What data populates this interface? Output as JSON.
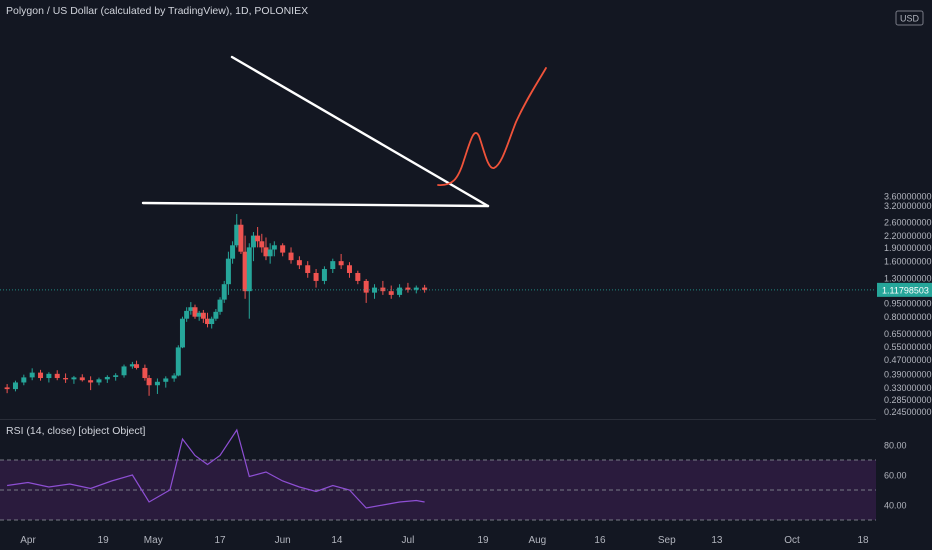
{
  "header": {
    "title": "Polygon / US Dollar (calculated by TradingView), 1D, POLONIEX",
    "currency": "USD"
  },
  "rsi": {
    "label": "RSI (14, close) [object Object]",
    "ticks": [
      "80.00",
      "60.00",
      "40.00"
    ],
    "upper_band": 70,
    "lower_band": 30,
    "mid_band": 50
  },
  "price_axis": {
    "ticks": [
      "3.60000000",
      "3.20000000",
      "2.60000000",
      "2.20000000",
      "1.90000000",
      "1.60000000",
      "1.30000000",
      "0.95000000",
      "0.80000000",
      "0.65000000",
      "0.55000000",
      "0.47000000",
      "0.39000000",
      "0.33000000",
      "0.28500000",
      "0.24500000"
    ],
    "last_price": "1.11798503"
  },
  "time_axis": {
    "ticks": [
      "Apr",
      "19",
      "May",
      "17",
      "Jun",
      "14",
      "Jul",
      "19",
      "Aug",
      "16",
      "Sep",
      "13",
      "Oct",
      "18"
    ]
  },
  "colors": {
    "background": "#131722",
    "up": "#26a69a",
    "down": "#ef5350",
    "drawing": "#ffffff",
    "projection": "#f0533a",
    "rsi_line": "#8e4fd4",
    "rsi_band": "#2a1b3d",
    "last_price_tag": "#26a69a"
  },
  "chart_data": [
    {
      "type": "candlestick",
      "title": "Polygon / US Dollar (calculated by TradingView), 1D, POLONIEX",
      "scale": "log",
      "x_range": [
        "Mar 26",
        "Oct 21"
      ],
      "y_range": [
        0.24,
        3.7
      ],
      "series": [
        {
          "date": "Mar 27",
          "open": 0.331,
          "high": 0.345,
          "low": 0.308,
          "close": 0.324
        },
        {
          "date": "Mar 29",
          "open": 0.324,
          "high": 0.36,
          "low": 0.315,
          "close": 0.352
        },
        {
          "date": "Mar 31",
          "open": 0.352,
          "high": 0.388,
          "low": 0.34,
          "close": 0.375
        },
        {
          "date": "Apr 2",
          "open": 0.375,
          "high": 0.42,
          "low": 0.362,
          "close": 0.398
        },
        {
          "date": "Apr 4",
          "open": 0.398,
          "high": 0.412,
          "low": 0.36,
          "close": 0.372
        },
        {
          "date": "Apr 6",
          "open": 0.372,
          "high": 0.4,
          "low": 0.352,
          "close": 0.392
        },
        {
          "date": "Apr 8",
          "open": 0.392,
          "high": 0.41,
          "low": 0.362,
          "close": 0.372
        },
        {
          "date": "Apr 10",
          "open": 0.372,
          "high": 0.394,
          "low": 0.35,
          "close": 0.366
        },
        {
          "date": "Apr 12",
          "open": 0.366,
          "high": 0.382,
          "low": 0.346,
          "close": 0.375
        },
        {
          "date": "Apr 14",
          "open": 0.375,
          "high": 0.39,
          "low": 0.356,
          "close": 0.362
        },
        {
          "date": "Apr 16",
          "open": 0.362,
          "high": 0.38,
          "low": 0.32,
          "close": 0.352
        },
        {
          "date": "Apr 18",
          "open": 0.352,
          "high": 0.374,
          "low": 0.34,
          "close": 0.366
        },
        {
          "date": "Apr 20",
          "open": 0.366,
          "high": 0.385,
          "low": 0.35,
          "close": 0.377
        },
        {
          "date": "Apr 22",
          "open": 0.377,
          "high": 0.395,
          "low": 0.36,
          "close": 0.385
        },
        {
          "date": "Apr 24",
          "open": 0.385,
          "high": 0.44,
          "low": 0.374,
          "close": 0.43
        },
        {
          "date": "Apr 26",
          "open": 0.43,
          "high": 0.455,
          "low": 0.418,
          "close": 0.442
        },
        {
          "date": "Apr 27",
          "open": 0.442,
          "high": 0.462,
          "low": 0.414,
          "close": 0.422
        },
        {
          "date": "Apr 29",
          "open": 0.422,
          "high": 0.44,
          "low": 0.36,
          "close": 0.372
        },
        {
          "date": "Apr 30",
          "open": 0.372,
          "high": 0.386,
          "low": 0.298,
          "close": 0.34
        },
        {
          "date": "May 2",
          "open": 0.34,
          "high": 0.37,
          "low": 0.305,
          "close": 0.355
        },
        {
          "date": "May 4",
          "open": 0.355,
          "high": 0.38,
          "low": 0.33,
          "close": 0.37
        },
        {
          "date": "May 6",
          "open": 0.37,
          "high": 0.395,
          "low": 0.355,
          "close": 0.384
        },
        {
          "date": "May 7",
          "open": 0.384,
          "high": 0.56,
          "low": 0.38,
          "close": 0.545
        },
        {
          "date": "May 8",
          "open": 0.545,
          "high": 0.8,
          "low": 0.54,
          "close": 0.78
        },
        {
          "date": "May 9",
          "open": 0.78,
          "high": 0.9,
          "low": 0.75,
          "close": 0.86
        },
        {
          "date": "May 10",
          "open": 0.86,
          "high": 0.96,
          "low": 0.82,
          "close": 0.9
        },
        {
          "date": "May 11",
          "open": 0.9,
          "high": 0.93,
          "low": 0.78,
          "close": 0.8
        },
        {
          "date": "May 12",
          "open": 0.8,
          "high": 0.86,
          "low": 0.76,
          "close": 0.84
        },
        {
          "date": "May 13",
          "open": 0.84,
          "high": 0.87,
          "low": 0.74,
          "close": 0.78
        },
        {
          "date": "May 14",
          "open": 0.78,
          "high": 0.84,
          "low": 0.7,
          "close": 0.73
        },
        {
          "date": "May 15",
          "open": 0.73,
          "high": 0.8,
          "low": 0.69,
          "close": 0.78
        },
        {
          "date": "May 16",
          "open": 0.78,
          "high": 0.88,
          "low": 0.76,
          "close": 0.85
        },
        {
          "date": "May 17",
          "open": 0.85,
          "high": 1.02,
          "low": 0.82,
          "close": 0.99
        },
        {
          "date": "May 18",
          "open": 0.99,
          "high": 1.25,
          "low": 0.95,
          "close": 1.2
        },
        {
          "date": "May 19",
          "open": 1.2,
          "high": 1.8,
          "low": 1.05,
          "close": 1.65
        },
        {
          "date": "May 20",
          "open": 1.65,
          "high": 2.05,
          "low": 1.55,
          "close": 1.95
        },
        {
          "date": "May 21",
          "open": 1.95,
          "high": 2.88,
          "low": 1.9,
          "close": 2.52
        },
        {
          "date": "May 22",
          "open": 2.52,
          "high": 2.7,
          "low": 1.75,
          "close": 1.8
        },
        {
          "date": "May 23",
          "open": 1.8,
          "high": 2.2,
          "low": 1.0,
          "close": 1.1
        },
        {
          "date": "May 24",
          "open": 1.1,
          "high": 2.0,
          "low": 0.78,
          "close": 1.9
        },
        {
          "date": "May 25",
          "open": 1.9,
          "high": 2.3,
          "low": 1.6,
          "close": 2.2
        },
        {
          "date": "May 26",
          "open": 2.2,
          "high": 2.45,
          "low": 1.9,
          "close": 2.05
        },
        {
          "date": "May 27",
          "open": 2.05,
          "high": 2.25,
          "low": 1.78,
          "close": 1.9
        },
        {
          "date": "May 28",
          "open": 1.9,
          "high": 2.15,
          "low": 1.62,
          "close": 1.7
        },
        {
          "date": "May 29",
          "open": 1.7,
          "high": 2.0,
          "low": 1.55,
          "close": 1.85
        },
        {
          "date": "May 30",
          "open": 1.85,
          "high": 2.05,
          "low": 1.7,
          "close": 1.95
        },
        {
          "date": "Jun 1",
          "open": 1.95,
          "high": 2.0,
          "low": 1.7,
          "close": 1.78
        },
        {
          "date": "Jun 3",
          "open": 1.78,
          "high": 1.9,
          "low": 1.55,
          "close": 1.62
        },
        {
          "date": "Jun 5",
          "open": 1.62,
          "high": 1.7,
          "low": 1.45,
          "close": 1.52
        },
        {
          "date": "Jun 7",
          "open": 1.52,
          "high": 1.6,
          "low": 1.3,
          "close": 1.38
        },
        {
          "date": "Jun 9",
          "open": 1.38,
          "high": 1.45,
          "low": 1.15,
          "close": 1.25
        },
        {
          "date": "Jun 11",
          "open": 1.25,
          "high": 1.5,
          "low": 1.2,
          "close": 1.45
        },
        {
          "date": "Jun 13",
          "open": 1.45,
          "high": 1.65,
          "low": 1.38,
          "close": 1.6
        },
        {
          "date": "Jun 15",
          "open": 1.6,
          "high": 1.75,
          "low": 1.45,
          "close": 1.52
        },
        {
          "date": "Jun 17",
          "open": 1.52,
          "high": 1.58,
          "low": 1.3,
          "close": 1.38
        },
        {
          "date": "Jun 19",
          "open": 1.38,
          "high": 1.42,
          "low": 1.2,
          "close": 1.25
        },
        {
          "date": "Jun 21",
          "open": 1.25,
          "high": 1.28,
          "low": 0.95,
          "close": 1.08
        },
        {
          "date": "Jun 23",
          "open": 1.08,
          "high": 1.2,
          "low": 1.0,
          "close": 1.15
        },
        {
          "date": "Jun 25",
          "open": 1.15,
          "high": 1.25,
          "low": 1.05,
          "close": 1.1
        },
        {
          "date": "Jun 27",
          "open": 1.1,
          "high": 1.18,
          "low": 1.0,
          "close": 1.05
        },
        {
          "date": "Jun 29",
          "open": 1.05,
          "high": 1.2,
          "low": 1.02,
          "close": 1.15
        },
        {
          "date": "Jul 1",
          "open": 1.15,
          "high": 1.22,
          "low": 1.08,
          "close": 1.12
        },
        {
          "date": "Jul 3",
          "open": 1.12,
          "high": 1.18,
          "low": 1.07,
          "close": 1.15
        },
        {
          "date": "Jul 5",
          "open": 1.15,
          "high": 1.19,
          "low": 1.08,
          "close": 1.118
        }
      ]
    },
    {
      "type": "line",
      "title": "RSI (14, close)",
      "y_range": [
        24,
        92
      ],
      "series": [
        {
          "x": [
            "Mar 27",
            "Apr 1",
            "Apr 6",
            "Apr 11",
            "Apr 16",
            "Apr 21",
            "Apr 26",
            "Apr 30",
            "May 5",
            "May 8",
            "May 11",
            "May 14",
            "May 17",
            "May 21",
            "May 24",
            "May 28",
            "Jun 1",
            "Jun 5",
            "Jun 9",
            "Jun 13",
            "Jun 17",
            "Jun 21",
            "Jun 25",
            "Jun 29",
            "Jul 3",
            "Jul 5"
          ],
          "y": [
            53,
            55,
            52,
            54,
            51,
            56,
            60,
            42,
            50,
            84,
            73,
            67,
            73,
            90,
            59,
            62,
            56,
            52,
            49,
            53,
            50,
            38,
            40,
            42,
            43,
            42
          ]
        }
      ]
    }
  ]
}
